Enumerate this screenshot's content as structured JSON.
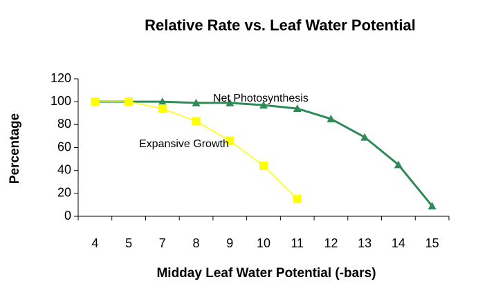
{
  "chart_data": {
    "type": "line",
    "title": "Relative Rate vs. Leaf Water Potential",
    "xlabel": "Midday Leaf Water Potential (-bars)",
    "ylabel": "Percentage",
    "categories": [
      "4",
      "5",
      "7",
      "8",
      "9",
      "10",
      "11",
      "12",
      "13",
      "14",
      "15"
    ],
    "series": [
      {
        "name": "Net Photosynthesis",
        "color": "#2e8b57",
        "marker": "triangle",
        "values": [
          100,
          100,
          100,
          99,
          99,
          97,
          94,
          85,
          69,
          45,
          9
        ]
      },
      {
        "name": "Expansive Growth",
        "color": "#ffff00",
        "marker": "square",
        "values": [
          100,
          100,
          94,
          83,
          66,
          44,
          15,
          null,
          null,
          null,
          null
        ]
      }
    ],
    "ylim": [
      0,
      120
    ],
    "yticks": [
      0,
      20,
      40,
      60,
      80,
      100,
      120
    ],
    "grid": false
  }
}
